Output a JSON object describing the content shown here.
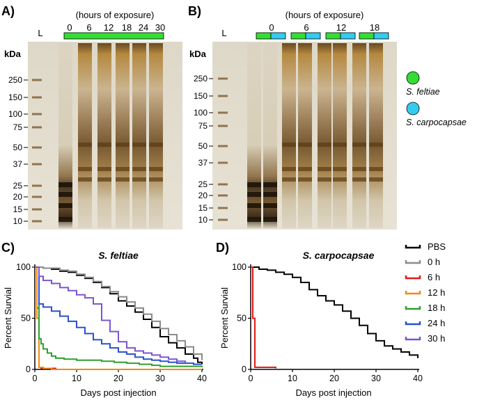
{
  "colors": {
    "feltiae": "#33dd33",
    "carpocapsae": "#33ccee",
    "pbs": "#000000",
    "h0": "#8a8a8a",
    "h6": "#e01818",
    "h12": "#f08a10",
    "h18": "#2da02d",
    "h24": "#2a50d0",
    "h30": "#7a55d0"
  },
  "panelA": {
    "label": "A)",
    "header": "(hours of exposure)",
    "ladder_label": "L",
    "kda_label": "kDa",
    "hours": [
      "0",
      "6",
      "12",
      "18",
      "24",
      "30"
    ],
    "kda_marks": [
      "250",
      "150",
      "100",
      "75",
      "50",
      "37",
      "25",
      "20",
      "15",
      "10"
    ]
  },
  "panelB": {
    "label": "B)",
    "header": "(hours of exposure)",
    "ladder_label": "L",
    "kda_label": "kDa",
    "hours": [
      "0",
      "6",
      "12",
      "18"
    ],
    "kda_marks": [
      "250",
      "150",
      "100",
      "75",
      "50",
      "37",
      "25",
      "20",
      "15",
      "10"
    ]
  },
  "legend_species": [
    {
      "name": "S. feltiae",
      "color_key": "feltiae"
    },
    {
      "name": "S. carpocapsae",
      "color_key": "carpocapsae"
    }
  ],
  "chart_data": [
    {
      "type": "line",
      "panel_label": "C)",
      "title": "S. feltiae",
      "xlabel": "Days post injection",
      "ylabel": "Percent Survial",
      "xlim": [
        0,
        40
      ],
      "ylim": [
        0,
        100
      ],
      "xticks": [
        "0",
        "10",
        "20",
        "30",
        "40"
      ],
      "yticks": [
        "0",
        "50",
        "100"
      ],
      "series": [
        {
          "name": "PBS",
          "color_key": "pbs",
          "x": [
            0,
            2,
            4,
            6,
            8,
            10,
            12,
            14,
            16,
            18,
            20,
            22,
            24,
            26,
            28,
            30,
            32,
            34,
            36,
            38,
            39,
            40
          ],
          "y": [
            100,
            99,
            98,
            96,
            95,
            92,
            89,
            85,
            80,
            74,
            67,
            62,
            56,
            49,
            41,
            32,
            26,
            21,
            15,
            11,
            7,
            5
          ]
        },
        {
          "name": "0 h",
          "color_key": "h0",
          "x": [
            0,
            2,
            4,
            6,
            8,
            10,
            12,
            14,
            16,
            18,
            20,
            22,
            24,
            26,
            28,
            30,
            32,
            34,
            36,
            38,
            40
          ],
          "y": [
            100,
            99,
            99,
            97,
            96,
            93,
            90,
            86,
            81,
            76,
            71,
            66,
            60,
            54,
            47,
            40,
            34,
            28,
            22,
            15,
            9
          ]
        },
        {
          "name": "6 h",
          "color_key": "h6",
          "x": [
            0,
            0.5,
            1,
            1.5,
            3,
            5,
            10,
            20,
            30,
            40
          ],
          "y": [
            100,
            60,
            2,
            1,
            1,
            0,
            0,
            0,
            0,
            0
          ]
        },
        {
          "name": "12 h",
          "color_key": "h12",
          "x": [
            0,
            0.5,
            1,
            2,
            4,
            10,
            20,
            30,
            40
          ],
          "y": [
            100,
            50,
            2,
            1,
            0,
            0,
            0,
            0,
            0
          ]
        },
        {
          "name": "18 h",
          "color_key": "h18",
          "x": [
            0,
            1,
            1.5,
            2,
            3,
            4,
            5,
            7,
            10,
            13,
            16,
            19,
            22,
            25,
            28,
            30,
            40
          ],
          "y": [
            100,
            30,
            25,
            20,
            16,
            13,
            11,
            10,
            9,
            9,
            8,
            7,
            6,
            5,
            4,
            3,
            2
          ]
        },
        {
          "name": "24 h",
          "color_key": "h24",
          "x": [
            0,
            1,
            2,
            4,
            6,
            8,
            10,
            12,
            14,
            16,
            18,
            20,
            22,
            24,
            26,
            28,
            30,
            32,
            34,
            36,
            38,
            40
          ],
          "y": [
            100,
            64,
            61,
            57,
            52,
            47,
            41,
            35,
            29,
            25,
            21,
            17,
            15,
            12,
            10,
            9,
            8,
            7,
            6,
            6,
            5,
            5
          ]
        },
        {
          "name": "30 h",
          "color_key": "h30",
          "x": [
            0,
            1,
            2,
            4,
            6,
            8,
            10,
            12,
            14,
            16,
            18,
            20,
            22,
            24,
            26,
            28,
            30,
            32,
            34,
            36
          ],
          "y": [
            100,
            91,
            87,
            84,
            80,
            77,
            73,
            70,
            64,
            48,
            37,
            27,
            21,
            18,
            16,
            14,
            12,
            10,
            8,
            6
          ]
        }
      ]
    },
    {
      "type": "line",
      "panel_label": "D)",
      "title": "S. carpocapsae",
      "xlabel": "Days post injection",
      "ylabel": "Percent Survial",
      "xlim": [
        0,
        40
      ],
      "ylim": [
        0,
        100
      ],
      "xticks": [
        "0",
        "10",
        "20",
        "30",
        "40"
      ],
      "yticks": [
        "0",
        "50",
        "100"
      ],
      "series": [
        {
          "name": "PBS",
          "color_key": "pbs",
          "x": [
            0,
            2,
            4,
            6,
            8,
            10,
            12,
            14,
            16,
            18,
            20,
            22,
            24,
            26,
            28,
            30,
            32,
            34,
            36,
            38,
            40
          ],
          "y": [
            100,
            98,
            97,
            95,
            93,
            90,
            85,
            78,
            72,
            67,
            63,
            57,
            50,
            43,
            35,
            28,
            23,
            20,
            17,
            14,
            11
          ]
        },
        {
          "name": "6 h",
          "color_key": "h6",
          "x": [
            0,
            0.5,
            1,
            2,
            4,
            6
          ],
          "y": [
            100,
            50,
            2,
            2,
            2,
            1
          ]
        }
      ]
    }
  ],
  "legend_lines": [
    "PBS",
    "0 h",
    "6 h",
    "12 h",
    "18 h",
    "24 h",
    "30 h"
  ]
}
